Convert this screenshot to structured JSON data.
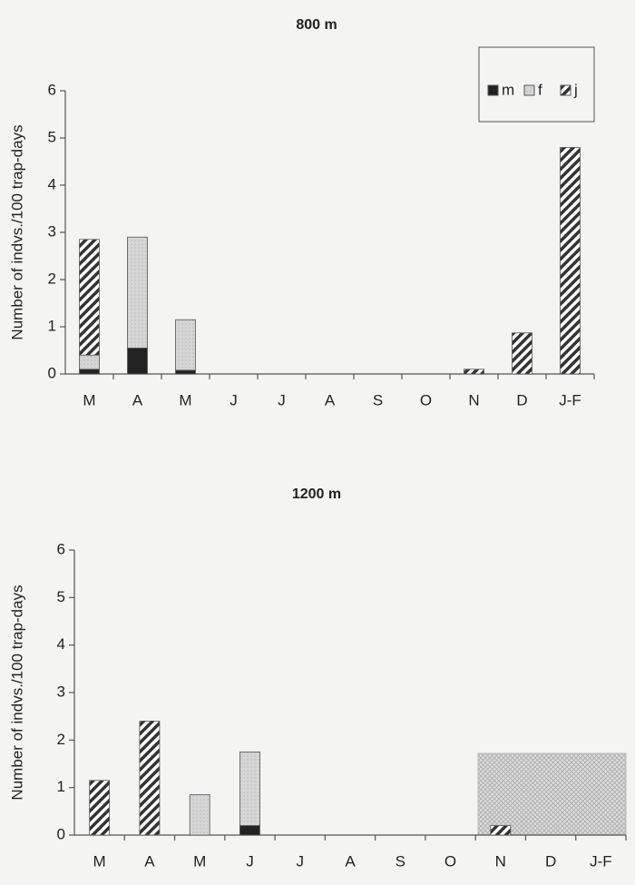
{
  "chart_data": [
    {
      "type": "bar",
      "stacked": true,
      "title": "800 m",
      "ylabel": "Number of indvs./100 trap-days",
      "categories": [
        "M",
        "A",
        "M",
        "J",
        "J",
        "A",
        "S",
        "O",
        "N",
        "D",
        "J-F"
      ],
      "series": [
        {
          "name": "m",
          "color": "#222222",
          "values": [
            0.1,
            0.55,
            0.08,
            0,
            0,
            0,
            0,
            0,
            0,
            0,
            0
          ]
        },
        {
          "name": "f",
          "color": "#d8d8d8",
          "values": [
            0.3,
            2.35,
            1.07,
            0,
            0,
            0,
            0,
            0,
            0,
            0,
            0
          ]
        },
        {
          "name": "j",
          "color": "#333333",
          "values": [
            2.45,
            0,
            0,
            0,
            0,
            0,
            0,
            0,
            0.1,
            0.87,
            4.8
          ]
        }
      ],
      "ylim": [
        0,
        6
      ],
      "yticks": [
        0,
        1,
        2,
        3,
        4,
        5,
        6
      ],
      "legend": "upper right"
    },
    {
      "type": "bar",
      "stacked": true,
      "title": "1200 m",
      "ylabel": "Number of indvs./100 trap-days",
      "categories": [
        "M",
        "A",
        "M",
        "J",
        "J",
        "A",
        "S",
        "O",
        "N",
        "D",
        "J-F"
      ],
      "series": [
        {
          "name": "m",
          "color": "#222222",
          "values": [
            0,
            0,
            0,
            0.2,
            0,
            0,
            0,
            0,
            0,
            0,
            0
          ]
        },
        {
          "name": "f",
          "color": "#d8d8d8",
          "values": [
            0,
            0,
            0.85,
            1.55,
            0,
            0,
            0,
            0,
            0,
            0,
            0
          ]
        },
        {
          "name": "j",
          "color": "#333333",
          "values": [
            1.15,
            2.4,
            0,
            0,
            0,
            0,
            0,
            0,
            0.2,
            0,
            0
          ]
        }
      ],
      "ylim": [
        0,
        6
      ],
      "yticks": [
        0,
        1,
        2,
        3,
        4,
        5,
        6
      ]
    }
  ]
}
